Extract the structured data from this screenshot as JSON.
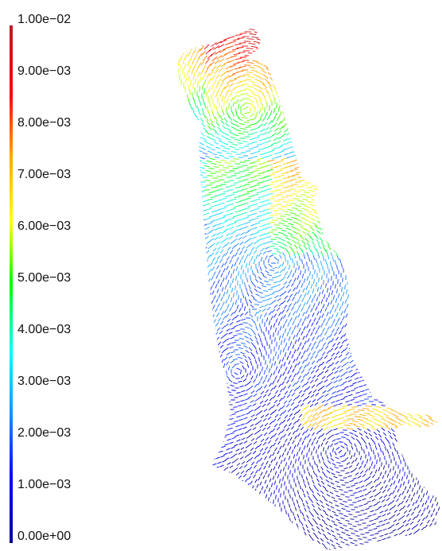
{
  "legend": {
    "tick_labels": [
      "1.00e−02",
      "9.00e−03",
      "8.00e−03",
      "7.00e−03",
      "6.00e−03",
      "5.00e−03",
      "4.00e−03",
      "3.00e−03",
      "2.00e−03",
      "1.00e−03",
      "0.00e+00"
    ],
    "max": 0.01,
    "min": 0.0,
    "colormap": [
      "#00008b",
      "#0000ff",
      "#1e90ff",
      "#00ffff",
      "#00ff00",
      "#ffff00",
      "#ffa500",
      "#ff0000",
      "#b22222"
    ]
  },
  "field": {
    "description_colors": {
      "low": "#1010c8",
      "mid": "#00d0ff",
      "high": "#e02020"
    },
    "type": "vector-field-glyphs"
  }
}
